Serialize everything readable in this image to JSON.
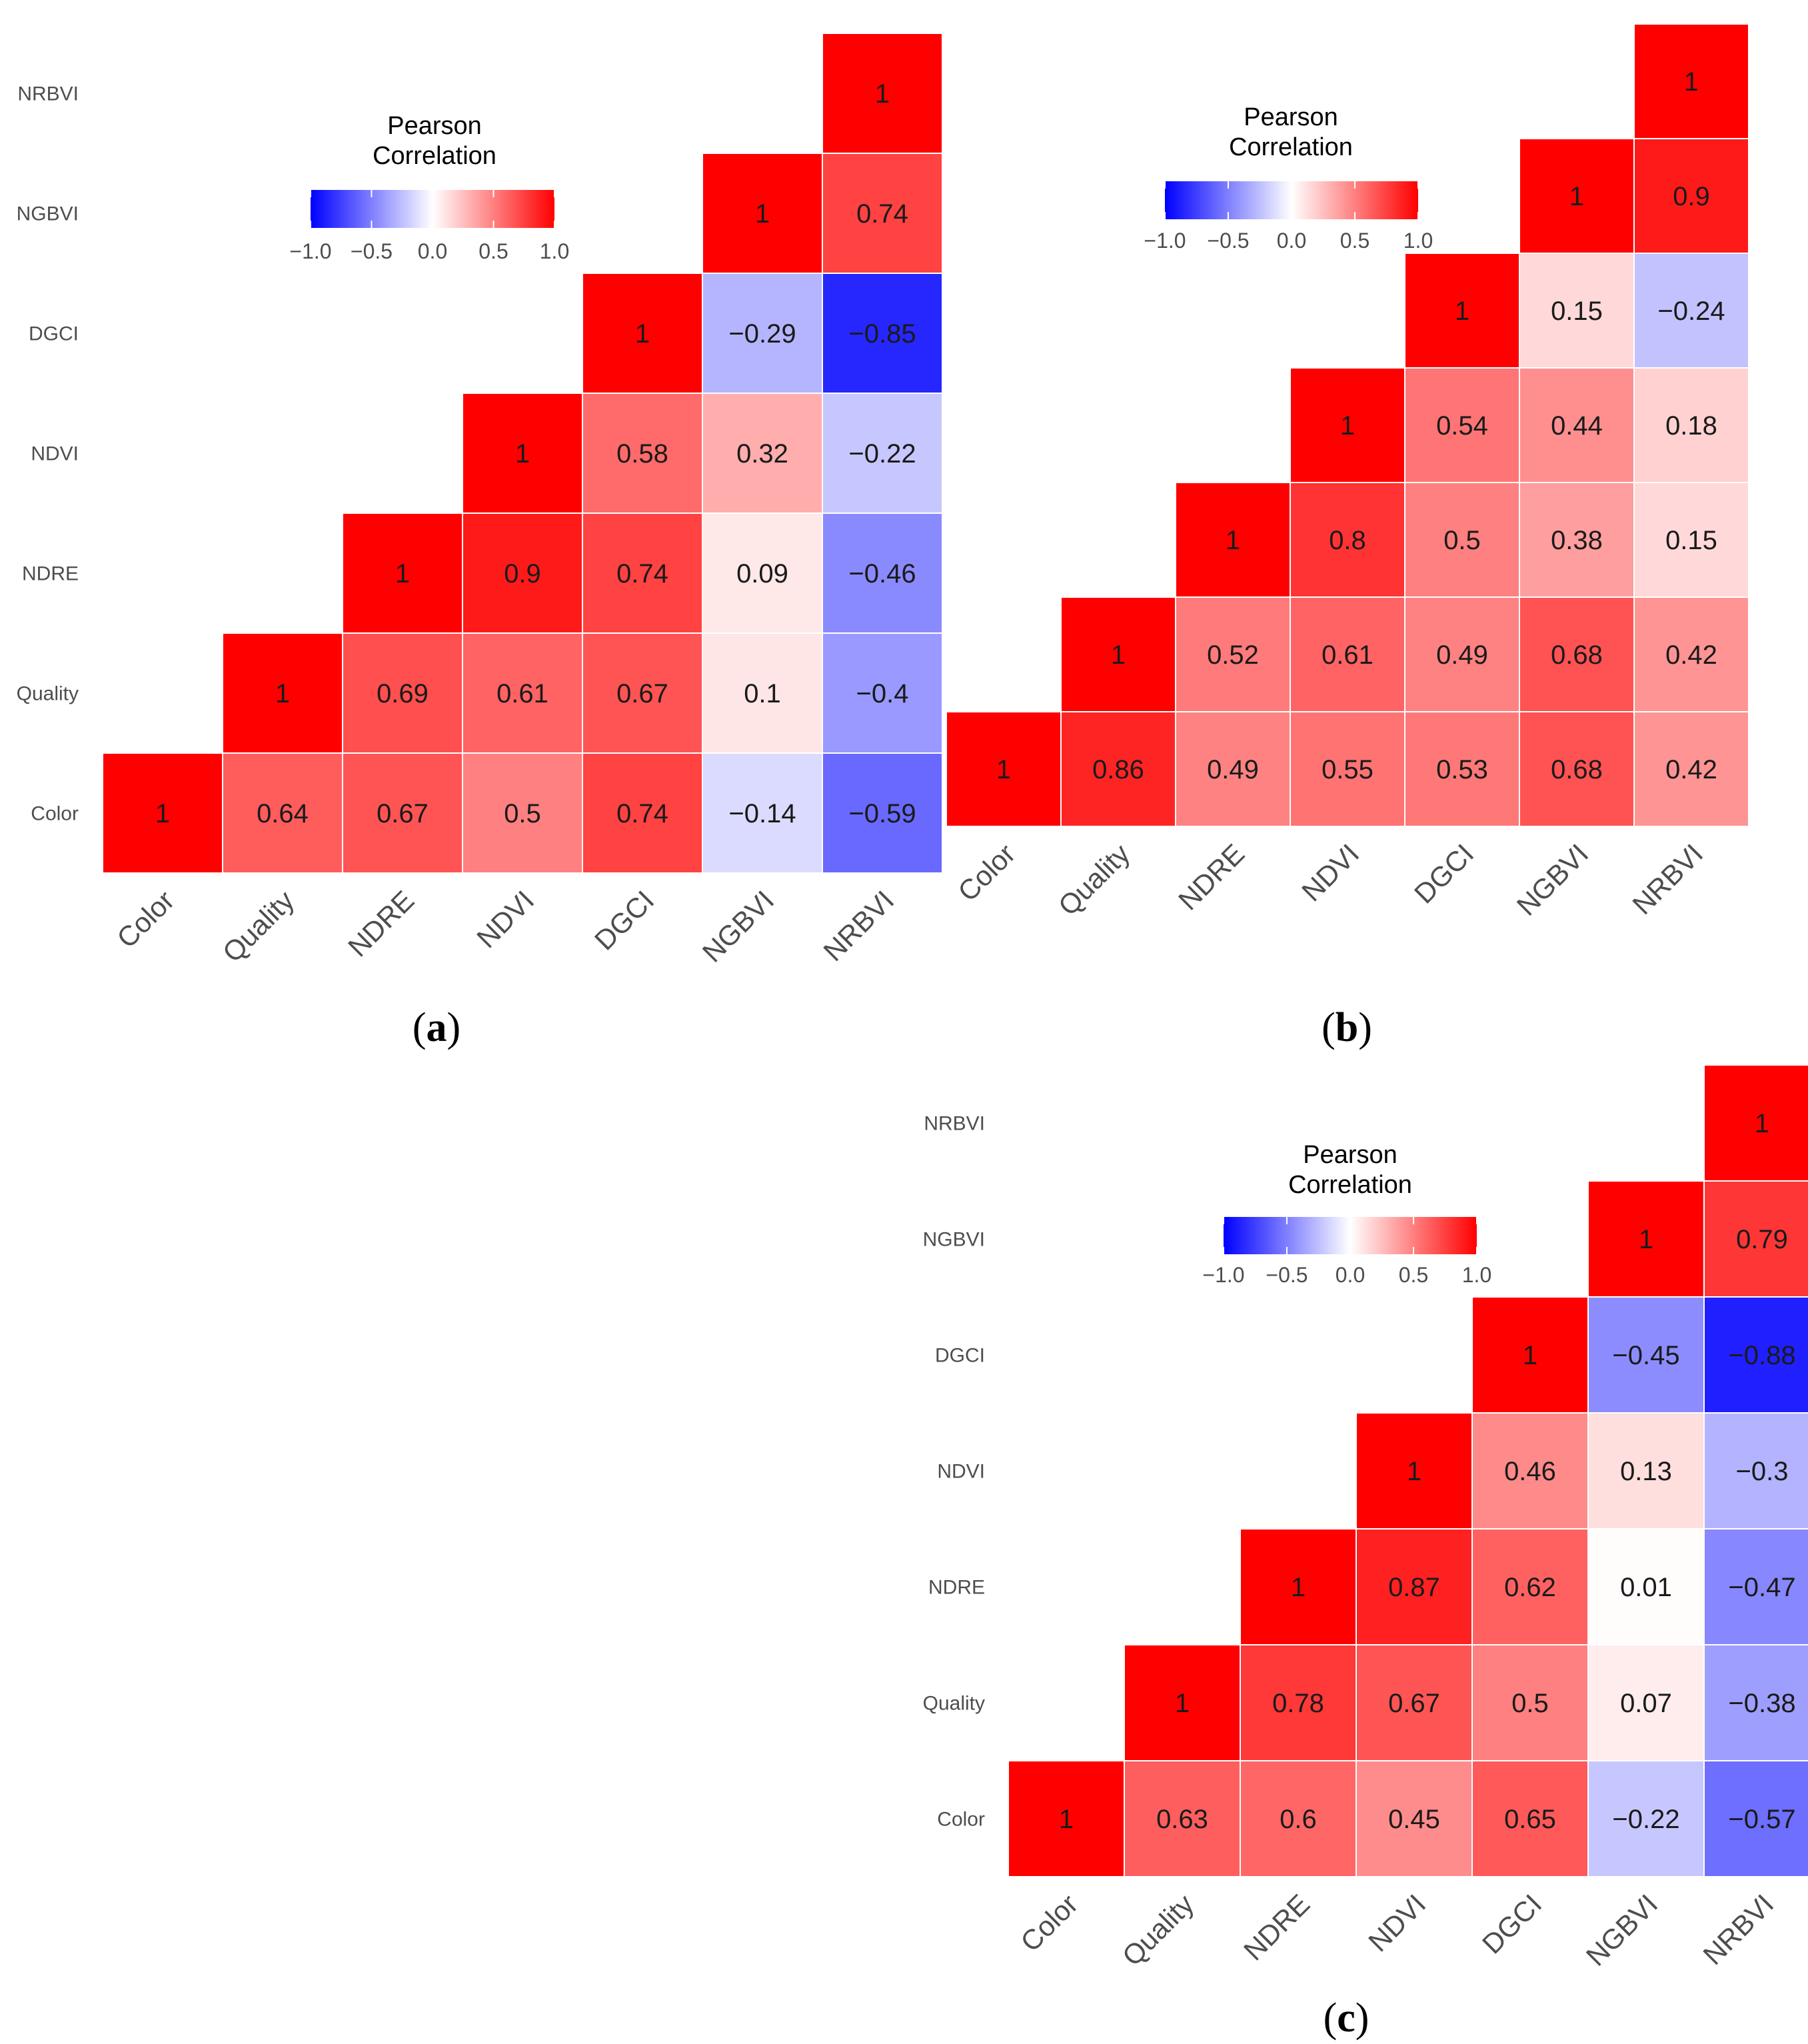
{
  "figure": {
    "panels": [
      {
        "label_prefix": "(",
        "label_letter": "a",
        "label_suffix": ")"
      },
      {
        "label_prefix": "(",
        "label_letter": "b",
        "label_suffix": ")"
      },
      {
        "label_prefix": "(",
        "label_letter": "c",
        "label_suffix": ")"
      }
    ]
  },
  "chart_data": [
    {
      "type": "heatmap",
      "panel": "(a)",
      "variables": [
        "Color",
        "Quality",
        "NDRE",
        "NDVI",
        "DGCI",
        "NGBVI",
        "NRBVI"
      ],
      "matrix_upper_labels": [
        [
          "1",
          "0.64",
          "0.67",
          "0.5",
          "0.74",
          "−0.14",
          "−0.59"
        ],
        [
          "",
          "1",
          "0.69",
          "0.61",
          "0.67",
          "0.1",
          "−0.4"
        ],
        [
          "",
          "",
          "1",
          "0.9",
          "0.74",
          "0.09",
          "−0.46"
        ],
        [
          "",
          "",
          "",
          "1",
          "0.58",
          "0.32",
          "−0.22"
        ],
        [
          "",
          "",
          "",
          "",
          "1",
          "−0.29",
          "−0.85"
        ],
        [
          "",
          "",
          "",
          "",
          "",
          "1",
          "0.74"
        ],
        [
          "",
          "",
          "",
          "",
          "",
          "",
          "1"
        ]
      ],
      "legend": {
        "title_line1": "Pearson",
        "title_line2": "Correlation",
        "range": [
          -1.0,
          1.0
        ],
        "ticks": [
          -1.0,
          -0.5,
          0.0,
          0.5,
          1.0
        ],
        "tick_labels": [
          "−1.0",
          "−0.5",
          "0.0",
          "0.5",
          "1.0"
        ],
        "position": "top-left"
      },
      "colors": {
        "low": "#0000ff",
        "mid": "#ffffff",
        "high": "#ff0000"
      }
    },
    {
      "type": "heatmap",
      "panel": "(b)",
      "variables": [
        "Color",
        "Quality",
        "NDRE",
        "NDVI",
        "DGCI",
        "NGBVI",
        "NRBVI"
      ],
      "matrix_upper_labels": [
        [
          "1",
          "0.86",
          "0.49",
          "0.55",
          "0.53",
          "0.68",
          "0.42"
        ],
        [
          "",
          "1",
          "0.52",
          "0.61",
          "0.49",
          "0.68",
          "0.42"
        ],
        [
          "",
          "",
          "1",
          "0.8",
          "0.5",
          "0.38",
          "0.15"
        ],
        [
          "",
          "",
          "",
          "1",
          "0.54",
          "0.44",
          "0.18"
        ],
        [
          "",
          "",
          "",
          "",
          "1",
          "0.15",
          "−0.24"
        ],
        [
          "",
          "",
          "",
          "",
          "",
          "1",
          "0.9"
        ],
        [
          "",
          "",
          "",
          "",
          "",
          "",
          "1"
        ]
      ],
      "legend": {
        "title_line1": "Pearson",
        "title_line2": "Correlation",
        "range": [
          -1.0,
          1.0
        ],
        "ticks": [
          -1.0,
          -0.5,
          0.0,
          0.5,
          1.0
        ],
        "tick_labels": [
          "−1.0",
          "−0.5",
          "0.0",
          "0.5",
          "1.0"
        ],
        "position": "top-left"
      },
      "colors": {
        "low": "#0000ff",
        "mid": "#ffffff",
        "high": "#ff0000"
      }
    },
    {
      "type": "heatmap",
      "panel": "(c)",
      "variables": [
        "Color",
        "Quality",
        "NDRE",
        "NDVI",
        "DGCI",
        "NGBVI",
        "NRBVI"
      ],
      "matrix_upper_labels": [
        [
          "1",
          "0.63",
          "0.6",
          "0.45",
          "0.65",
          "−0.22",
          "−0.57"
        ],
        [
          "",
          "1",
          "0.78",
          "0.67",
          "0.5",
          "0.07",
          "−0.38"
        ],
        [
          "",
          "",
          "1",
          "0.87",
          "0.62",
          "0.01",
          "−0.47"
        ],
        [
          "",
          "",
          "",
          "1",
          "0.46",
          "0.13",
          "−0.3"
        ],
        [
          "",
          "",
          "",
          "",
          "1",
          "−0.45",
          "−0.88"
        ],
        [
          "",
          "",
          "",
          "",
          "",
          "1",
          "0.79"
        ],
        [
          "",
          "",
          "",
          "",
          "",
          "",
          "1"
        ]
      ],
      "legend": {
        "title_line1": "Pearson",
        "title_line2": "Correlation",
        "range": [
          -1.0,
          1.0
        ],
        "ticks": [
          -1.0,
          -0.5,
          0.0,
          0.5,
          1.0
        ],
        "tick_labels": [
          "−1.0",
          "−0.5",
          "0.0",
          "0.5",
          "1.0"
        ],
        "position": "top-left"
      },
      "colors": {
        "low": "#0000ff",
        "mid": "#ffffff",
        "high": "#ff0000"
      }
    }
  ]
}
